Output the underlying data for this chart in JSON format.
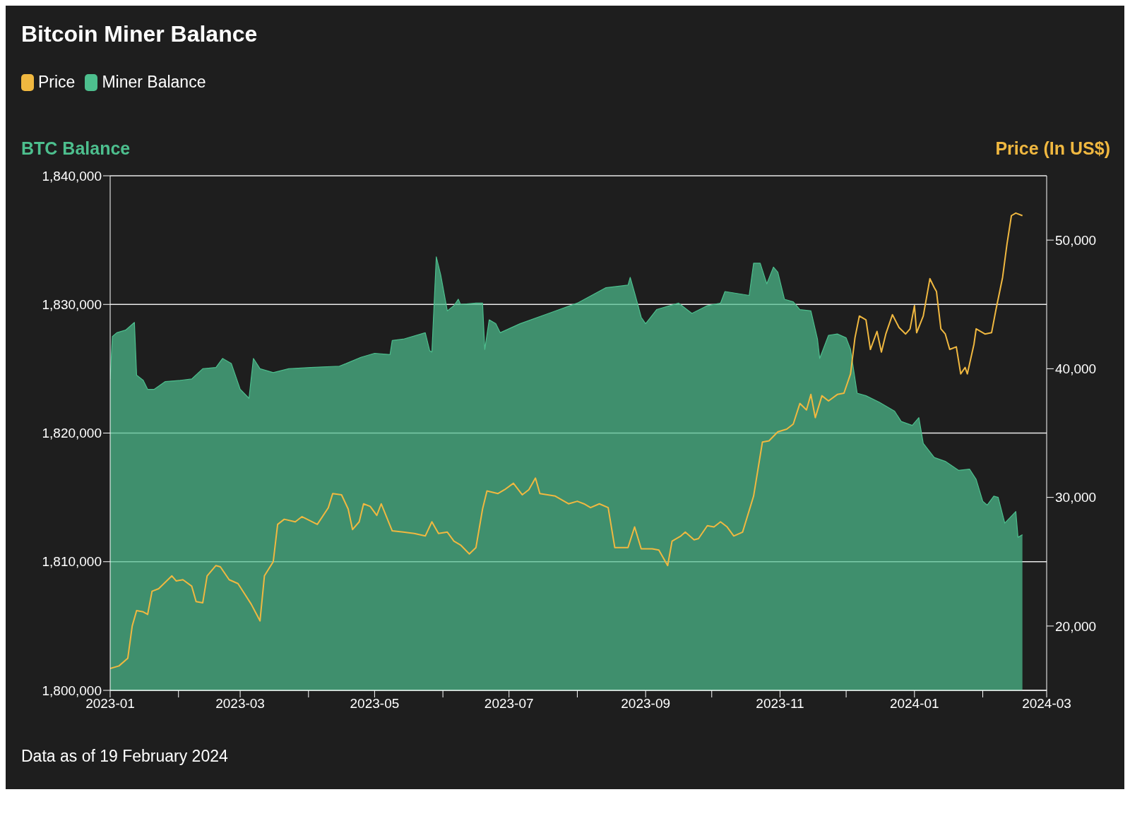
{
  "chart_data": {
    "type": "line",
    "title": "Bitcoin Miner Balance",
    "ylabel": "BTC Balance",
    "y2label": "Price (In US$)",
    "legend": "top left",
    "grid": "y",
    "marker": "none",
    "annotations": [
      "Data as of 19 February 2024"
    ],
    "xlim": [
      "2023-01-01",
      "2024-03-01"
    ],
    "xticks": [
      {
        "value": "2023-01",
        "label": "2023-01"
      },
      {
        "value": "2023-02",
        "label": null
      },
      {
        "value": "2023-03",
        "label": "2023-03"
      },
      {
        "value": "2023-04",
        "label": null
      },
      {
        "value": "2023-05",
        "label": "2023-05"
      },
      {
        "value": "2023-06",
        "label": null
      },
      {
        "value": "2023-07",
        "label": "2023-07"
      },
      {
        "value": "2023-08",
        "label": null
      },
      {
        "value": "2023-09",
        "label": "2023-09"
      },
      {
        "value": "2023-10",
        "label": null
      },
      {
        "value": "2023-11",
        "label": "2023-11"
      },
      {
        "value": "2023-12",
        "label": null
      },
      {
        "value": "2024-01",
        "label": "2024-01"
      },
      {
        "value": "2024-02",
        "label": null
      },
      {
        "value": "2024-03",
        "label": "2024-03"
      }
    ],
    "ylim": [
      1800000,
      1840000
    ],
    "yticks": [
      {
        "value": 1800000,
        "label": "1,800,000"
      },
      {
        "value": 1810000,
        "label": "1,810,000"
      },
      {
        "value": 1820000,
        "label": "1,820,000"
      },
      {
        "value": 1830000,
        "label": "1,830,000"
      },
      {
        "value": 1840000,
        "label": "1,840,000"
      }
    ],
    "y2lim": [
      15000,
      55000
    ],
    "y2ticks": [
      {
        "value": 20000,
        "label": "20,000"
      },
      {
        "value": 30000,
        "label": "30,000"
      },
      {
        "value": 40000,
        "label": "40,000"
      },
      {
        "value": 50000,
        "label": "50,000"
      }
    ],
    "series": [
      {
        "name": "Price",
        "axis": "y2",
        "color": "#f0b840",
        "x": [
          "2023-01-01",
          "2023-01-05",
          "2023-01-09",
          "2023-01-11",
          "2023-01-13",
          "2023-01-16",
          "2023-01-18",
          "2023-01-20",
          "2023-01-23",
          "2023-01-29",
          "2023-01-31",
          "2023-02-03",
          "2023-02-07",
          "2023-02-09",
          "2023-02-12",
          "2023-02-14",
          "2023-02-18",
          "2023-02-20",
          "2023-02-24",
          "2023-02-28",
          "2023-03-03",
          "2023-03-06",
          "2023-03-10",
          "2023-03-12",
          "2023-03-16",
          "2023-03-18",
          "2023-03-21",
          "2023-03-26",
          "2023-03-29",
          "2023-04-05",
          "2023-04-10",
          "2023-04-12",
          "2023-04-16",
          "2023-04-19",
          "2023-04-21",
          "2023-04-24",
          "2023-04-26",
          "2023-04-29",
          "2023-05-02",
          "2023-05-04",
          "2023-05-09",
          "2023-05-14",
          "2023-05-19",
          "2023-05-24",
          "2023-05-27",
          "2023-05-30",
          "2023-06-03",
          "2023-06-06",
          "2023-06-09",
          "2023-06-13",
          "2023-06-16",
          "2023-06-19",
          "2023-06-21",
          "2023-06-26",
          "2023-06-29",
          "2023-07-03",
          "2023-07-07",
          "2023-07-10",
          "2023-07-13",
          "2023-07-15",
          "2023-07-22",
          "2023-07-28",
          "2023-08-01",
          "2023-08-04",
          "2023-08-07",
          "2023-08-11",
          "2023-08-15",
          "2023-08-18",
          "2023-08-24",
          "2023-08-27",
          "2023-08-30",
          "2023-09-04",
          "2023-09-07",
          "2023-09-11",
          "2023-09-13",
          "2023-09-17",
          "2023-09-19",
          "2023-09-23",
          "2023-09-25",
          "2023-09-29",
          "2023-10-02",
          "2023-10-05",
          "2023-10-08",
          "2023-10-11",
          "2023-10-15",
          "2023-10-20",
          "2023-10-24",
          "2023-10-27",
          "2023-10-31",
          "2023-11-04",
          "2023-11-07",
          "2023-11-10",
          "2023-11-13",
          "2023-11-15",
          "2023-11-17",
          "2023-11-20",
          "2023-11-23",
          "2023-11-27",
          "2023-11-30",
          "2023-12-03",
          "2023-12-05",
          "2023-12-07",
          "2023-12-10",
          "2023-12-12",
          "2023-12-15",
          "2023-12-17",
          "2023-12-19",
          "2023-12-22",
          "2023-12-25",
          "2023-12-28",
          "2023-12-30",
          "2024-01-01",
          "2024-01-02",
          "2024-01-05",
          "2024-01-08",
          "2024-01-10",
          "2024-01-11",
          "2024-01-13",
          "2024-01-15",
          "2024-01-17",
          "2024-01-20",
          "2024-01-22",
          "2024-01-24",
          "2024-01-25",
          "2024-01-28",
          "2024-01-29",
          "2024-02-02",
          "2024-02-05",
          "2024-02-07",
          "2024-02-10",
          "2024-02-12",
          "2024-02-14",
          "2024-02-16",
          "2024-02-19"
        ],
        "values": [
          16700,
          16900,
          17500,
          20000,
          21200,
          21100,
          20900,
          22700,
          22900,
          23900,
          23500,
          23600,
          23100,
          21900,
          21800,
          23900,
          24700,
          24600,
          23600,
          23300,
          22500,
          21700,
          20400,
          23900,
          25000,
          27900,
          28300,
          28100,
          28500,
          27900,
          29200,
          30300,
          30200,
          29100,
          27500,
          28100,
          29500,
          29300,
          28600,
          29500,
          27400,
          27300,
          27200,
          27000,
          28100,
          27200,
          27300,
          26600,
          26300,
          25600,
          26100,
          29100,
          30500,
          30300,
          30600,
          31100,
          30200,
          30600,
          31500,
          30300,
          30100,
          29500,
          29700,
          29500,
          29200,
          29500,
          29200,
          26100,
          26100,
          27700,
          26000,
          26000,
          25900,
          24700,
          26600,
          27000,
          27300,
          26700,
          26800,
          27800,
          27700,
          28100,
          27700,
          27000,
          27300,
          30100,
          34300,
          34400,
          35100,
          35300,
          35700,
          37300,
          36800,
          38000,
          36200,
          37900,
          37500,
          38000,
          38100,
          39600,
          42400,
          44100,
          43800,
          41500,
          42900,
          41300,
          42700,
          44200,
          43200,
          42700,
          43100,
          44900,
          42800,
          44100,
          47000,
          46300,
          46000,
          43100,
          42700,
          41500,
          41700,
          39600,
          40100,
          39600,
          41900,
          43100,
          42700,
          42800,
          44600,
          47100,
          49700,
          51900,
          52100,
          51900
        ]
      },
      {
        "name": "Miner Balance",
        "type": "area",
        "axis": "y",
        "color": "#4dbf8e",
        "x": [
          "2023-01-01",
          "2023-01-02",
          "2023-01-04",
          "2023-01-08",
          "2023-01-12",
          "2023-01-13",
          "2023-01-16",
          "2023-01-18",
          "2023-01-21",
          "2023-01-26",
          "2023-02-02",
          "2023-02-07",
          "2023-02-12",
          "2023-02-18",
          "2023-02-21",
          "2023-02-25",
          "2023-03-01",
          "2023-03-05",
          "2023-03-07",
          "2023-03-10",
          "2023-03-16",
          "2023-03-23",
          "2023-04-02",
          "2023-04-15",
          "2023-04-18",
          "2023-04-25",
          "2023-05-01",
          "2023-05-08",
          "2023-05-09",
          "2023-05-14",
          "2023-05-24",
          "2023-05-26",
          "2023-05-27",
          "2023-05-29",
          "2023-05-31",
          "2023-06-03",
          "2023-06-06",
          "2023-06-08",
          "2023-06-09",
          "2023-06-16",
          "2023-06-19",
          "2023-06-20",
          "2023-06-22",
          "2023-06-25",
          "2023-06-27",
          "2023-07-06",
          "2023-07-19",
          "2023-08-01",
          "2023-08-14",
          "2023-08-24",
          "2023-08-25",
          "2023-08-27",
          "2023-08-30",
          "2023-09-01",
          "2023-09-06",
          "2023-09-16",
          "2023-09-22",
          "2023-09-29",
          "2023-10-05",
          "2023-10-07",
          "2023-10-18",
          "2023-10-20",
          "2023-10-23",
          "2023-10-26",
          "2023-10-29",
          "2023-10-31",
          "2023-11-03",
          "2023-11-07",
          "2023-11-10",
          "2023-11-15",
          "2023-11-18",
          "2023-11-19",
          "2023-11-23",
          "2023-11-27",
          "2023-12-01",
          "2023-12-03",
          "2023-12-06",
          "2023-12-10",
          "2023-12-16",
          "2023-12-23",
          "2023-12-26",
          "2023-12-31",
          "2024-01-03",
          "2024-01-05",
          "2024-01-10",
          "2024-01-15",
          "2024-01-21",
          "2024-01-26",
          "2024-01-29",
          "2024-02-01",
          "2024-02-03",
          "2024-02-06",
          "2024-02-08",
          "2024-02-11",
          "2024-02-16",
          "2024-02-17",
          "2024-02-19"
        ],
        "values": [
          1824200,
          1827500,
          1827800,
          1828000,
          1828600,
          1824500,
          1824100,
          1823400,
          1823400,
          1824000,
          1824100,
          1824200,
          1825000,
          1825100,
          1825800,
          1825400,
          1823400,
          1822700,
          1825800,
          1825000,
          1824700,
          1825000,
          1825100,
          1825200,
          1825400,
          1825900,
          1826200,
          1826100,
          1827200,
          1827300,
          1827800,
          1826400,
          1826300,
          1833700,
          1832300,
          1829500,
          1829900,
          1830400,
          1830000,
          1830100,
          1830100,
          1826500,
          1828800,
          1828500,
          1827800,
          1828500,
          1829300,
          1830100,
          1831300,
          1831500,
          1832100,
          1830900,
          1829000,
          1828500,
          1829600,
          1830100,
          1829300,
          1829900,
          1830100,
          1831000,
          1830700,
          1833200,
          1833200,
          1831600,
          1832900,
          1832500,
          1830400,
          1830200,
          1829600,
          1829500,
          1827300,
          1825800,
          1827600,
          1827700,
          1827400,
          1826500,
          1823100,
          1822900,
          1822400,
          1821700,
          1820900,
          1820600,
          1821200,
          1819200,
          1818100,
          1817800,
          1817100,
          1817200,
          1816400,
          1814700,
          1814400,
          1815100,
          1815000,
          1813000,
          1813900,
          1811900,
          1812100
        ]
      }
    ]
  }
}
